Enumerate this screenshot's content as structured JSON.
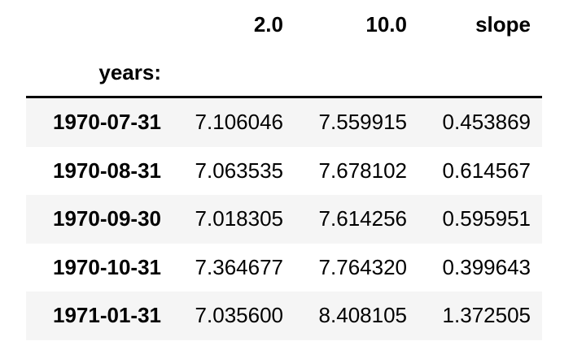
{
  "table": {
    "columns": [
      "2.0",
      "10.0",
      "slope"
    ],
    "index_name": "years:",
    "rows": [
      {
        "index": "1970-07-31",
        "values": [
          "7.106046",
          "7.559915",
          "0.453869"
        ]
      },
      {
        "index": "1970-08-31",
        "values": [
          "7.063535",
          "7.678102",
          "0.614567"
        ]
      },
      {
        "index": "1970-09-30",
        "values": [
          "7.018305",
          "7.614256",
          "0.595951"
        ]
      },
      {
        "index": "1970-10-31",
        "values": [
          "7.364677",
          "7.764320",
          "0.399643"
        ]
      },
      {
        "index": "1971-01-31",
        "values": [
          "7.035600",
          "8.408105",
          "1.372505"
        ]
      }
    ]
  },
  "colors": {
    "stripe": "#f5f5f5",
    "text": "#000000",
    "rule": "#000000"
  }
}
